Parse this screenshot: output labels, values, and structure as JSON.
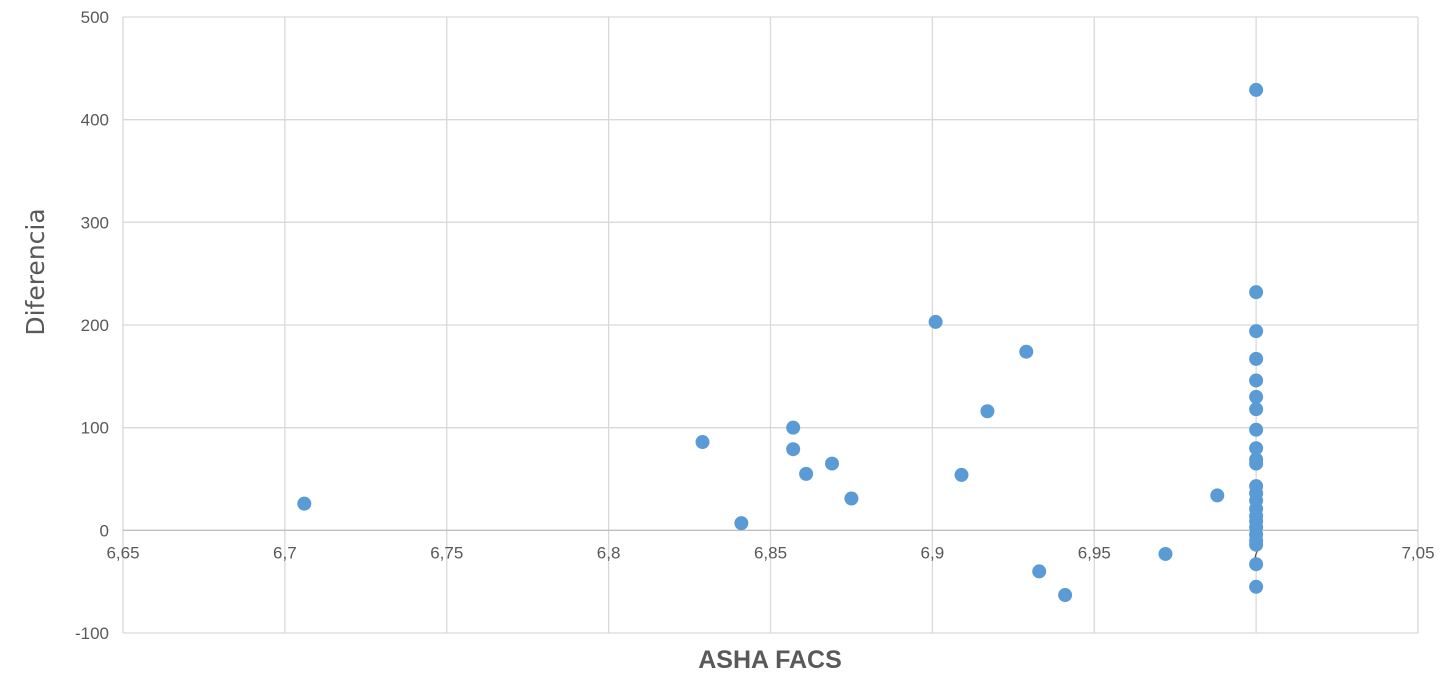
{
  "chart_data": {
    "type": "scatter",
    "title": "",
    "xlabel": "ASHA FACS",
    "ylabel": "Diferencia",
    "xlim": [
      6.65,
      7.05
    ],
    "ylim": [
      -100,
      500
    ],
    "x_ticks": [
      6.65,
      6.7,
      6.75,
      6.8,
      6.85,
      6.9,
      6.95,
      7,
      7.05
    ],
    "x_tick_labels": [
      "6,65",
      "6,7",
      "6,75",
      "6,8",
      "6,85",
      "6,9",
      "6,95",
      "7",
      "7,05"
    ],
    "y_ticks": [
      -100,
      0,
      100,
      200,
      300,
      400,
      500
    ],
    "y_tick_labels": [
      "-100",
      "0",
      "100",
      "200",
      "300",
      "400",
      "500"
    ],
    "grid": true,
    "legend": "none",
    "marker_color": "#5b9bd5",
    "series": [
      {
        "points": [
          {
            "x": 6.706,
            "y": 26
          },
          {
            "x": 6.829,
            "y": 86
          },
          {
            "x": 6.841,
            "y": 7
          },
          {
            "x": 6.857,
            "y": 100
          },
          {
            "x": 6.857,
            "y": 79
          },
          {
            "x": 6.861,
            "y": 55
          },
          {
            "x": 6.869,
            "y": 65
          },
          {
            "x": 6.875,
            "y": 31
          },
          {
            "x": 6.901,
            "y": 203
          },
          {
            "x": 6.909,
            "y": 54
          },
          {
            "x": 6.917,
            "y": 116
          },
          {
            "x": 6.929,
            "y": 174
          },
          {
            "x": 6.933,
            "y": -40
          },
          {
            "x": 6.941,
            "y": -63
          },
          {
            "x": 6.972,
            "y": -23
          },
          {
            "x": 6.988,
            "y": 34
          },
          {
            "x": 7.0,
            "y": 429
          },
          {
            "x": 7.0,
            "y": 232
          },
          {
            "x": 7.0,
            "y": 194
          },
          {
            "x": 7.0,
            "y": 167
          },
          {
            "x": 7.0,
            "y": 146
          },
          {
            "x": 7.0,
            "y": 130
          },
          {
            "x": 7.0,
            "y": 118
          },
          {
            "x": 7.0,
            "y": 98
          },
          {
            "x": 7.0,
            "y": 80
          },
          {
            "x": 7.0,
            "y": 69
          },
          {
            "x": 7.0,
            "y": 65
          },
          {
            "x": 7.0,
            "y": 43
          },
          {
            "x": 7.0,
            "y": 36
          },
          {
            "x": 7.0,
            "y": 29
          },
          {
            "x": 7.0,
            "y": 21
          },
          {
            "x": 7.0,
            "y": 14
          },
          {
            "x": 7.0,
            "y": 9
          },
          {
            "x": 7.0,
            "y": 3
          },
          {
            "x": 7.0,
            "y": -4
          },
          {
            "x": 7.0,
            "y": -10
          },
          {
            "x": 7.0,
            "y": -14
          },
          {
            "x": 7.0,
            "y": -33
          },
          {
            "x": 7.0,
            "y": -55
          }
        ]
      }
    ]
  }
}
